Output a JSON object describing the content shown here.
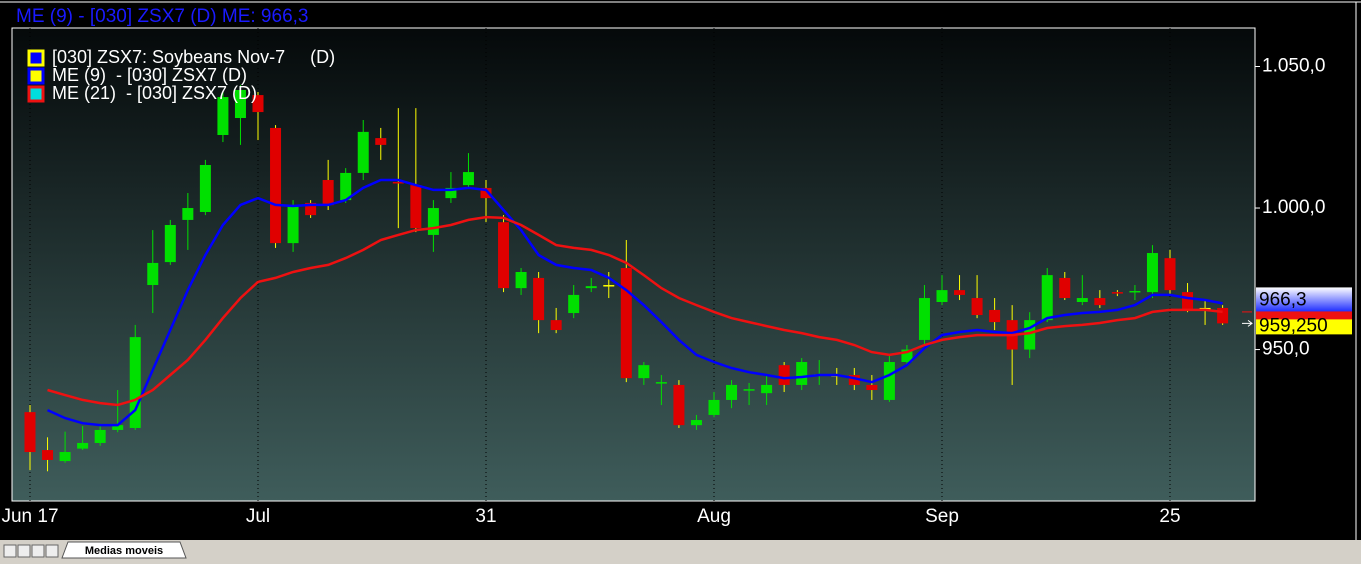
{
  "tab": "Medias moveis",
  "chart_data": {
    "type": "candlestick",
    "title": "ME (9)  - [030] ZSX7 (D)  ME: 966,3",
    "categories": [
      "Jun 17",
      null,
      null,
      null,
      null,
      null,
      null,
      null,
      null,
      null,
      null,
      null,
      null,
      "Jul",
      null,
      null,
      null,
      null,
      null,
      null,
      null,
      null,
      null,
      null,
      null,
      null,
      "31",
      null,
      null,
      null,
      null,
      null,
      null,
      null,
      null,
      null,
      null,
      null,
      null,
      "Aug",
      null,
      null,
      null,
      null,
      null,
      null,
      null,
      null,
      null,
      null,
      null,
      null,
      "Sep",
      null,
      null,
      null,
      null,
      null,
      null,
      null,
      null,
      null,
      null,
      null,
      null,
      "25",
      null,
      null,
      null
    ],
    "ylim": [
      896.5,
      1063.6
    ],
    "yticks": [
      {
        "value": 950,
        "label": "950,0"
      },
      {
        "value": 1000,
        "label": "1.000,0"
      },
      {
        "value": 1050,
        "label": "1.050,0"
      }
    ],
    "up_color": "#00e000",
    "down_color": "#e00000",
    "doji_color": "#ffff00",
    "series": [
      {
        "name": "[030] ZSX7: Soybeans Nov-7     (D)",
        "type": "candlestick",
        "color": "#ffff00",
        "marker_fill": "#0000ff",
        "last_label": "959,250",
        "open": [
          927.9,
          914.5,
          910.6,
          915,
          917,
          921.6,
          922.3,
          972.8,
          980.9,
          995.8,
          998.6,
          1025.8,
          1031.8,
          1039.9,
          1028.3,
          987.6,
          1001.8,
          1009.9,
          1002.8,
          1012.4,
          1024.7,
          1009.2,
          1008.1,
          990.5,
          1003.5,
          1008.1,
          1007.1,
          995,
          971.7,
          975.3,
          960.4,
          962.9,
          971.7,
          972.8,
          978.8,
          939.9,
          938.2,
          937.5,
          923.3,
          926.9,
          932.2,
          935.7,
          934.6,
          944.5,
          937.5,
          941,
          941,
          941,
          937.5,
          932.2,
          945.6,
          953.4,
          966.8,
          971,
          968.2,
          964,
          960.4,
          950,
          960.4,
          975.3,
          966.8,
          968.2,
          970.3,
          970.3,
          970.3,
          982.3,
          970.3,
          964.7,
          964.7
        ],
        "high": [
          930.4,
          919,
          921,
          923,
          923,
          935.7,
          958.7,
          992.2,
          995.8,
          1005.3,
          1017,
          1041,
          1043.5,
          1041,
          1029.3,
          1002.8,
          1002.8,
          1017,
          1014.1,
          1031.1,
          1028.3,
          1035.3,
          1035.3,
          1002.8,
          1012.7,
          1019.4,
          1009.9,
          997.5,
          978.8,
          977.4,
          964.7,
          972.8,
          975.3,
          977.4,
          988.7,
          945.6,
          941,
          939.2,
          926.9,
          935,
          939.2,
          938.2,
          941,
          945.6,
          947,
          946.3,
          943.5,
          943.5,
          941,
          948.1,
          951.6,
          972.8,
          976.3,
          976.3,
          976.3,
          968.2,
          965.7,
          963.2,
          978.8,
          977.4,
          976.3,
          971,
          971,
          972.8,
          986.9,
          985.2,
          973.5,
          967.5,
          965.7
        ],
        "low": [
          907.4,
          907,
          910,
          914.5,
          916,
          920.8,
          921.6,
          962.9,
          979.9,
          985.2,
          997.5,
          1023.3,
          1022.3,
          1024,
          985.9,
          984.5,
          996.5,
          999.3,
          1001.8,
          1009.9,
          1017,
          992.9,
          991.5,
          984.5,
          1001.8,
          1007.1,
          995,
          970.3,
          969.3,
          955.8,
          955.8,
          961.1,
          970.3,
          968.2,
          938.5,
          937.5,
          930.4,
          922.3,
          921.6,
          926.1,
          929.3,
          930.4,
          930.4,
          935,
          935.7,
          937.5,
          937.5,
          935.7,
          932.2,
          931.5,
          944.5,
          951.6,
          965.7,
          967.5,
          961.1,
          956.9,
          937.5,
          947,
          959.7,
          967.5,
          965.7,
          964.7,
          968.9,
          967.5,
          968.2,
          969.3,
          963.2,
          958.7,
          958.7
        ],
        "close": [
          913.8,
          911,
          913.8,
          917,
          921.6,
          923.3,
          954.4,
          980.6,
          994,
          1000,
          1015.2,
          1039.2,
          1041.7,
          1033.9,
          987.6,
          1001,
          997.5,
          1001,
          1012.4,
          1026.9,
          1022.3,
          1008.8,
          992.9,
          1000,
          1007.1,
          1012.7,
          1003.5,
          971.7,
          977.4,
          960.4,
          956.9,
          969.3,
          972.4,
          972.8,
          939.9,
          944.5,
          938.5,
          923.3,
          925.1,
          932.2,
          937.5,
          936,
          937.5,
          937.5,
          945.6,
          941.3,
          941,
          937.5,
          935.7,
          945.6,
          950,
          968.2,
          971,
          969.3,
          962.2,
          959.7,
          950,
          960.4,
          976.3,
          968.2,
          968.2,
          965.7,
          970,
          970.7,
          984.1,
          971,
          964,
          964.7,
          959.25
        ]
      },
      {
        "name": "ME (9)  - [030] ZSX7 (D)",
        "type": "line",
        "color": "#0000ff",
        "marker_fill": "#ffff00",
        "last_label": "966,3",
        "values": [
          null,
          928.6,
          925.8,
          924.0,
          923.3,
          923.3,
          928.6,
          942.8,
          956.9,
          971.0,
          983.4,
          994.0,
          1001.1,
          1003.5,
          1001.1,
          1000.7,
          1001.1,
          1001.1,
          1002.8,
          1007.1,
          1009.9,
          1009.9,
          1008.1,
          1006.4,
          1006.4,
          1007.1,
          1006.4,
          999.3,
          992.2,
          983.4,
          979.9,
          978.8,
          978.1,
          975.3,
          971.0,
          965.7,
          959.7,
          953.4,
          948.1,
          945.6,
          943.5,
          942.0,
          941.0,
          939.9,
          940.3,
          941.0,
          941.0,
          939.9,
          938.5,
          941.0,
          944.5,
          950.5,
          955.1,
          956.2,
          956.9,
          956.2,
          955.8,
          957.6,
          961.1,
          962.2,
          962.9,
          963.3,
          964.0,
          965.7,
          969.3,
          969.3,
          968.2,
          967.5,
          966.3
        ]
      },
      {
        "name": "ME (21)  - [030] ZSX7 (D)",
        "type": "line",
        "color": "#ee1111",
        "marker_fill": "#00dddd",
        "values": [
          null,
          935.7,
          933.9,
          932.2,
          931.1,
          930.4,
          932.2,
          935.7,
          941.0,
          946.3,
          953.4,
          961.1,
          968.2,
          973.9,
          975.3,
          977.4,
          978.8,
          979.9,
          982.3,
          985.2,
          988.7,
          990.5,
          992.2,
          992.9,
          994.0,
          995.8,
          996.8,
          996.5,
          994.0,
          990.5,
          986.9,
          985.9,
          985.2,
          983.4,
          980.6,
          976.3,
          971.7,
          968.2,
          965.7,
          963.3,
          961.1,
          959.7,
          958.3,
          956.9,
          955.8,
          954.4,
          953.4,
          951.6,
          949.1,
          948.1,
          949.1,
          951.6,
          953.4,
          954.4,
          955.1,
          955.1,
          955.1,
          955.8,
          957.6,
          958.3,
          958.7,
          959.4,
          960.4,
          961.1,
          963.3,
          964.0,
          964.0,
          964.0,
          963.3
        ]
      }
    ]
  }
}
